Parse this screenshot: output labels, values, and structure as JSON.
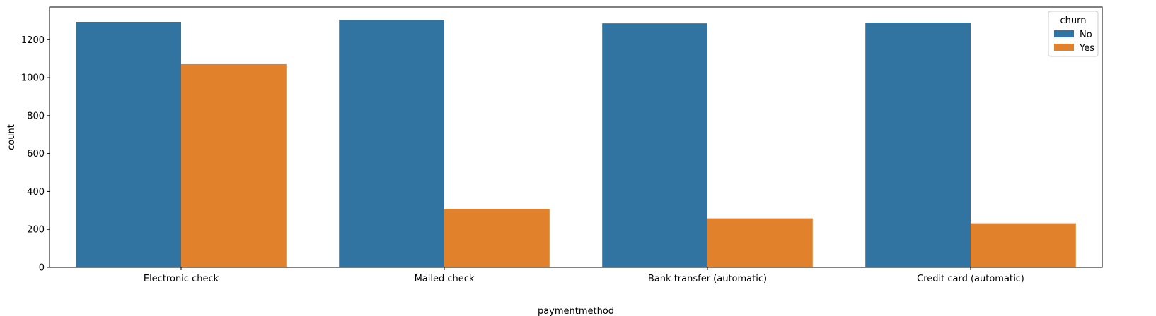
{
  "chart_data": {
    "type": "bar",
    "title": "",
    "xlabel": "paymentmethod",
    "ylabel": "count",
    "categories": [
      "Electronic check",
      "Mailed check",
      "Bank transfer (automatic)",
      "Credit card (automatic)"
    ],
    "series": [
      {
        "name": "No",
        "color": "#3274a1",
        "values": [
          1294,
          1304,
          1286,
          1290
        ]
      },
      {
        "name": "Yes",
        "color": "#e1812c",
        "values": [
          1071,
          308,
          258,
          232
        ]
      }
    ],
    "ylim": [
      0,
      1372
    ],
    "yticks": [
      0,
      200,
      400,
      600,
      800,
      1000,
      1200
    ],
    "legend": {
      "title": "churn",
      "placement": "top-right"
    },
    "grid": false
  }
}
